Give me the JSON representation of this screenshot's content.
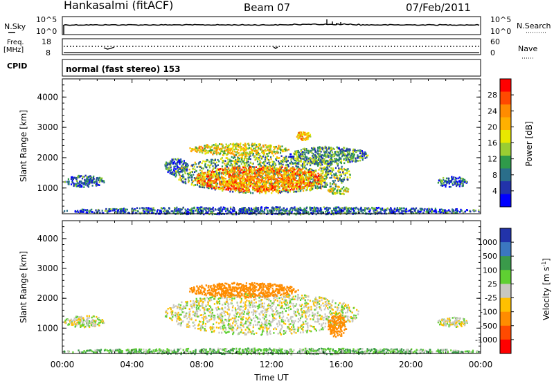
{
  "header": {
    "station": "Hankasalmi (fitACF)",
    "beam": "Beam 07",
    "date": "07/Feb/2011"
  },
  "panels": {
    "nsky": {
      "left_label": "N.Sky",
      "right_label": "N.Search",
      "left_ticks": [
        "10^5",
        "10^0"
      ],
      "right_ticks": [
        "10^5",
        "10^0"
      ]
    },
    "freq": {
      "left_label": "Freq.",
      "left_unit": "[MHz]",
      "right_label": "Nave",
      "left_ticks": [
        "18",
        "8"
      ],
      "right_ticks": [
        "60",
        "0"
      ]
    },
    "cpid": {
      "label": "CPID",
      "mode": "normal (fast stereo) 153"
    }
  },
  "power_colorbar": {
    "label": "Power [dB]",
    "ticks": [
      "28",
      "24",
      "20",
      "16",
      "12",
      "8",
      "4"
    ],
    "colors": [
      "#ff0000",
      "#ff4a00",
      "#ff8c00",
      "#ffb000",
      "#e8e800",
      "#9acd32",
      "#2f9a4a",
      "#2a6e8a",
      "#2233aa",
      "#0000ff"
    ]
  },
  "velocity_colorbar": {
    "label": "Velocity [m s",
    "label_sup": "-1",
    "label_end": "]",
    "ticks": [
      "1000",
      "500",
      "100",
      "25",
      "-25",
      "-100",
      "-500",
      "-1000"
    ],
    "colors": [
      "#2233aa",
      "#3b77c0",
      "#3a9a4a",
      "#5fd032",
      "#c8c8c0",
      "#ffc000",
      "#ff8c00",
      "#ff4a00",
      "#ff0000"
    ]
  },
  "chart_data": [
    {
      "type": "heatmap",
      "title": "Power",
      "xlabel": "Time UT",
      "ylabel": "Slant Range [km]",
      "xticks": [
        "00:00",
        "04:00",
        "08:00",
        "12:00",
        "16:00",
        "20:00",
        "00:00"
      ],
      "xlim": [
        0,
        24
      ],
      "yticks": [
        "1000",
        "2000",
        "3000",
        "4000"
      ],
      "ylim": [
        150,
        4600
      ],
      "colorbar_label": "Power [dB]",
      "colorbar_ticks": [
        28,
        24,
        20,
        16,
        12,
        8,
        4
      ],
      "blobs": [
        {
          "t0": 0.1,
          "t1": 2.4,
          "r0": 1050,
          "r1": 1450,
          "power": 6
        },
        {
          "t0": 5.8,
          "t1": 7.2,
          "r0": 1450,
          "r1": 2000,
          "power": 6
        },
        {
          "t0": 6.4,
          "t1": 16.6,
          "r0": 850,
          "r1": 2100,
          "power": 12
        },
        {
          "t0": 7.5,
          "t1": 15.0,
          "r0": 900,
          "r1": 1750,
          "power": 24
        },
        {
          "t0": 7.2,
          "t1": 13.0,
          "r0": 2100,
          "r1": 2500,
          "power": 18
        },
        {
          "t0": 13.0,
          "t1": 17.5,
          "r0": 1800,
          "r1": 2400,
          "power": 10
        },
        {
          "t0": 15.2,
          "t1": 16.4,
          "r0": 800,
          "r1": 1100,
          "power": 16
        },
        {
          "t0": 13.4,
          "t1": 14.2,
          "r0": 2600,
          "r1": 2900,
          "power": 22
        },
        {
          "t0": 21.5,
          "t1": 23.2,
          "r0": 1050,
          "r1": 1400,
          "power": 6
        },
        {
          "t0": 0.0,
          "t1": 24.0,
          "r0": 150,
          "r1": 400,
          "power": 6
        }
      ]
    },
    {
      "type": "heatmap",
      "title": "Velocity",
      "xlabel": "Time UT",
      "ylabel": "Slant Range [km]",
      "xticks": [
        "00:00",
        "04:00",
        "08:00",
        "12:00",
        "16:00",
        "20:00",
        "00:00"
      ],
      "xlim": [
        0,
        24
      ],
      "yticks": [
        "1000",
        "2000",
        "3000",
        "4000"
      ],
      "ylim": [
        150,
        4600
      ],
      "colorbar_label": "Velocity [m s-1]",
      "colorbar_ticks": [
        1000,
        500,
        100,
        25,
        -25,
        -100,
        -500,
        -1000
      ],
      "blobs": [
        {
          "t0": 0.1,
          "t1": 2.4,
          "r0": 1050,
          "r1": 1450,
          "velocity": 0
        },
        {
          "t0": 5.8,
          "t1": 17.0,
          "r0": 800,
          "r1": 2200,
          "velocity": 0
        },
        {
          "t0": 7.2,
          "t1": 13.5,
          "r0": 2050,
          "r1": 2550,
          "velocity": -200
        },
        {
          "t0": 15.2,
          "t1": 16.3,
          "r0": 700,
          "r1": 1500,
          "velocity": -150
        },
        {
          "t0": 21.5,
          "t1": 23.2,
          "r0": 1050,
          "r1": 1400,
          "velocity": 0
        },
        {
          "t0": 0.0,
          "t1": 24.0,
          "r0": 150,
          "r1": 350,
          "velocity": 50
        }
      ]
    }
  ]
}
